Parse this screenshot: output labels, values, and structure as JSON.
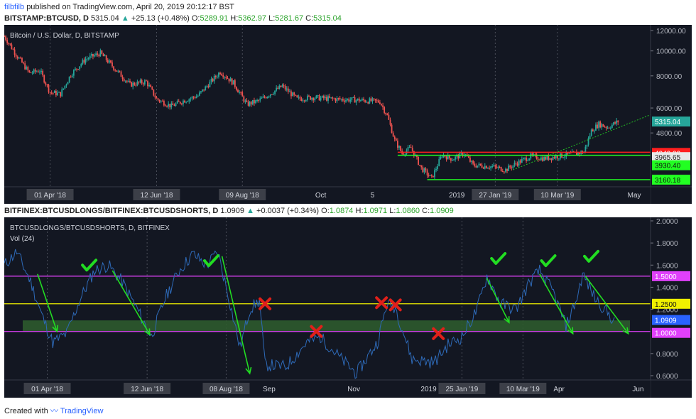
{
  "header": {
    "user": "filbfilb",
    "published": "published on TradingView.com, April 20, 2019 20:12:17 BST"
  },
  "top_quote": {
    "symbol": "BITSTAMP:BTCUSD, D",
    "last": "5315.04",
    "arrow": "▲",
    "change": "+25.13 (+0.48%)",
    "o_label": "O:",
    "o": "5289.91",
    "h_label": "H:",
    "h": "5362.97",
    "l_label": "L:",
    "l": "5281.67",
    "c_label": "C:",
    "c": "5315.04"
  },
  "bottom_quote": {
    "symbol": "BITFINEX:BTCUSDLONGS/BITFINEX:BTCUSDSHORTS, D",
    "last": "1.0909",
    "arrow": "▲",
    "change": "+0.0037 (+0.34%)",
    "o_label": "O:",
    "o": "1.0874",
    "h_label": "H:",
    "h": "1.0971",
    "l_label": "L:",
    "l": "1.0860",
    "c_label": "C:",
    "c": "1.0909"
  },
  "footer": {
    "created": "Created with",
    "brand": "TradingView"
  },
  "colors": {
    "bg": "#131722",
    "up": "#26a69a",
    "down": "#ef5350",
    "grid": "#2a2e39",
    "red_line": "#ff1f1f",
    "green_line": "#22ff22",
    "dotted": "#22c022",
    "magenta": "#e040fb",
    "yellow": "#f0f000",
    "zone": "#2d5a2d",
    "ratio_line": "#2e6ab8",
    "arrow": "#22dd22",
    "check": "#22dd22",
    "cross": "#e0201a"
  },
  "chart_data": [
    {
      "type": "candlestick",
      "title": "Bitcoin / U.S. Dollar, D, BITSTAMP",
      "scale": "log",
      "ylim": [
        3000,
        13000
      ],
      "y_ticks": [
        "12000.00",
        "10000.00",
        "8000.00",
        "6000.00",
        "4800.00"
      ],
      "x_ticks": [
        {
          "label": "01 Apr '18",
          "highlight": true
        },
        {
          "label": "12 Jun '18",
          "highlight": true
        },
        {
          "label": "09 Aug '18",
          "highlight": true
        },
        {
          "label": "Oct",
          "highlight": false
        },
        {
          "label": "5",
          "highlight": false
        },
        {
          "label": "2019",
          "highlight": false
        },
        {
          "label": "27 Jan '19",
          "highlight": true
        },
        {
          "label": "10 Mar '19",
          "highlight": true
        },
        {
          "label": "May",
          "highlight": false
        }
      ],
      "price_path": [
        [
          "2018-03-01",
          11400
        ],
        [
          "2018-03-10",
          9500
        ],
        [
          "2018-03-18",
          8200
        ],
        [
          "2018-03-25",
          8400
        ],
        [
          "2018-04-01",
          6900
        ],
        [
          "2018-04-08",
          6800
        ],
        [
          "2018-04-15",
          8100
        ],
        [
          "2018-04-25",
          9300
        ],
        [
          "2018-05-05",
          9800
        ],
        [
          "2018-05-15",
          8500
        ],
        [
          "2018-05-25",
          7400
        ],
        [
          "2018-06-05",
          7600
        ],
        [
          "2018-06-12",
          6500
        ],
        [
          "2018-06-22",
          6100
        ],
        [
          "2018-06-30",
          6400
        ],
        [
          "2018-07-10",
          6700
        ],
        [
          "2018-07-25",
          8300
        ],
        [
          "2018-08-03",
          7500
        ],
        [
          "2018-08-12",
          6200
        ],
        [
          "2018-08-20",
          6400
        ],
        [
          "2018-09-05",
          7300
        ],
        [
          "2018-09-15",
          6500
        ],
        [
          "2018-09-25",
          6600
        ],
        [
          "2018-10-10",
          6500
        ],
        [
          "2018-10-25",
          6450
        ],
        [
          "2018-11-10",
          6350
        ],
        [
          "2018-11-15",
          5600
        ],
        [
          "2018-11-20",
          4500
        ],
        [
          "2018-11-25",
          4000
        ],
        [
          "2018-12-01",
          4200
        ],
        [
          "2018-12-08",
          3500
        ],
        [
          "2018-12-15",
          3200
        ],
        [
          "2018-12-22",
          3950
        ],
        [
          "2018-12-29",
          3800
        ],
        [
          "2019-01-06",
          4000
        ],
        [
          "2019-01-12",
          3600
        ],
        [
          "2019-01-25",
          3550
        ],
        [
          "2019-02-03",
          3450
        ],
        [
          "2019-02-10",
          3650
        ],
        [
          "2019-02-20",
          3900
        ],
        [
          "2019-03-01",
          3820
        ],
        [
          "2019-03-15",
          3930
        ],
        [
          "2019-03-28",
          4050
        ],
        [
          "2019-04-02",
          4900
        ],
        [
          "2019-04-07",
          5200
        ],
        [
          "2019-04-13",
          5050
        ],
        [
          "2019-04-20",
          5315
        ]
      ],
      "levels": [
        {
          "value": 4040,
          "label": "4040.00",
          "color": "red"
        },
        {
          "value": 3965.65,
          "label": "3965.65",
          "color": "current"
        },
        {
          "value": 3930.4,
          "label": "3930.40",
          "color": "green"
        },
        {
          "value": 3160.18,
          "label": "3160.18",
          "color": "green"
        }
      ],
      "last_price": {
        "value": 5315.04,
        "label": "5315.04"
      }
    },
    {
      "type": "line",
      "title": "BTCUSDLONGS/BTCUSDSHORTS, D, BITFINEX",
      "subtitle": "Vol (24)",
      "ylim": [
        0.5,
        2.0
      ],
      "y_ticks": [
        "2.0000",
        "1.8000",
        "1.6000",
        "1.4000",
        "1.2000",
        "0.8000",
        "0.6000"
      ],
      "x_ticks": [
        {
          "label": "01 Apr '18",
          "highlight": true
        },
        {
          "label": "12 Jun '18",
          "highlight": true
        },
        {
          "label": "08 Aug '18",
          "highlight": true
        },
        {
          "label": "Sep",
          "highlight": false
        },
        {
          "label": "Nov",
          "highlight": false
        },
        {
          "label": "2019",
          "highlight": false
        },
        {
          "label": "25 Jan '19",
          "highlight": true
        },
        {
          "label": "10 Mar '19",
          "highlight": true
        },
        {
          "label": "Apr",
          "highlight": false
        },
        {
          "label": "Jun",
          "highlight": false
        }
      ],
      "ratio_path": [
        [
          "2018-03-01",
          1.6
        ],
        [
          "2018-03-10",
          1.72
        ],
        [
          "2018-03-20",
          1.45
        ],
        [
          "2018-03-28",
          1.15
        ],
        [
          "2018-04-05",
          0.9
        ],
        [
          "2018-04-15",
          0.98
        ],
        [
          "2018-04-25",
          1.3
        ],
        [
          "2018-05-05",
          1.55
        ],
        [
          "2018-05-15",
          1.6
        ],
        [
          "2018-05-25",
          1.45
        ],
        [
          "2018-06-05",
          1.2
        ],
        [
          "2018-06-15",
          0.95
        ],
        [
          "2018-06-25",
          1.3
        ],
        [
          "2018-07-05",
          1.55
        ],
        [
          "2018-07-15",
          1.7
        ],
        [
          "2018-07-25",
          1.6
        ],
        [
          "2018-08-02",
          1.72
        ],
        [
          "2018-08-10",
          1.3
        ],
        [
          "2018-08-18",
          0.85
        ],
        [
          "2018-08-25",
          1.2
        ],
        [
          "2018-09-01",
          1.28
        ],
        [
          "2018-09-05",
          0.7
        ],
        [
          "2018-09-20",
          0.68
        ],
        [
          "2018-10-05",
          0.9
        ],
        [
          "2018-10-15",
          0.95
        ],
        [
          "2018-10-30",
          0.75
        ],
        [
          "2018-11-10",
          0.62
        ],
        [
          "2018-11-25",
          0.9
        ],
        [
          "2018-12-02",
          1.25
        ],
        [
          "2018-12-08",
          1.22
        ],
        [
          "2018-12-20",
          0.75
        ],
        [
          "2019-01-05",
          0.72
        ],
        [
          "2019-01-15",
          0.88
        ],
        [
          "2019-01-25",
          0.95
        ],
        [
          "2019-02-05",
          1.2
        ],
        [
          "2019-02-12",
          1.5
        ],
        [
          "2019-02-22",
          1.25
        ],
        [
          "2019-03-05",
          1.2
        ],
        [
          "2019-03-15",
          1.45
        ],
        [
          "2019-03-22",
          1.55
        ],
        [
          "2019-04-01",
          1.35
        ],
        [
          "2019-04-10",
          1.05
        ],
        [
          "2019-04-18",
          1.3
        ],
        [
          "2019-04-22",
          1.52
        ],
        [
          "2019-05-01",
          1.3
        ],
        [
          "2019-05-08",
          1.2
        ],
        [
          "2019-05-15",
          1.09
        ]
      ],
      "levels": [
        {
          "value": 1.5,
          "label": "1.5000",
          "color": "magenta"
        },
        {
          "value": 1.25,
          "label": "1.2500",
          "color": "yellow"
        },
        {
          "value": 1.0909,
          "label": "1.0909",
          "color": "current"
        },
        {
          "value": 1.0,
          "label": "1.0000",
          "color": "magenta"
        }
      ],
      "zone": [
        1.0,
        1.1
      ]
    }
  ]
}
